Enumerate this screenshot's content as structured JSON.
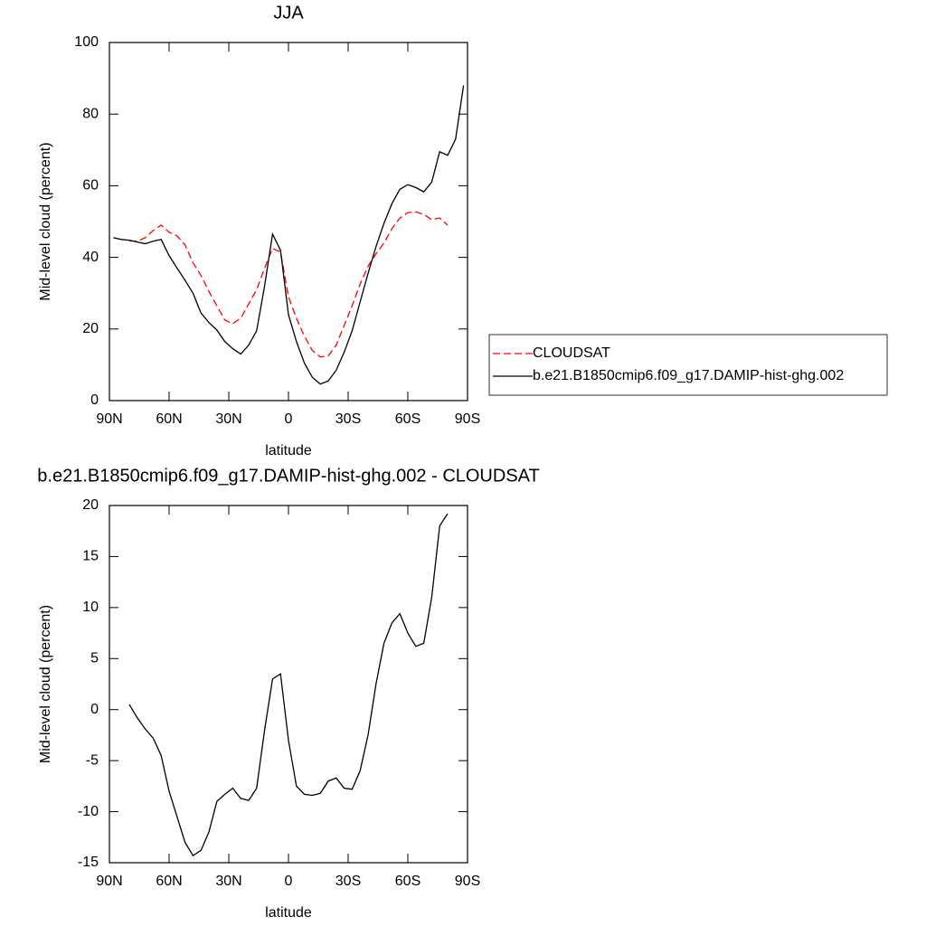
{
  "chart_data": [
    {
      "type": "line",
      "title": "JJA",
      "xlabel": "latitude",
      "ylabel": "Mid-level cloud (percent)",
      "x": [
        88,
        84,
        80,
        76,
        72,
        68,
        64,
        60,
        56,
        52,
        48,
        44,
        40,
        36,
        32,
        28,
        24,
        20,
        16,
        12,
        8,
        4,
        0,
        -4,
        -8,
        -12,
        -16,
        -20,
        -24,
        -28,
        -32,
        -36,
        -40,
        -44,
        -48,
        -52,
        -56,
        -60,
        -64,
        -68,
        -72,
        -76,
        -80,
        -84,
        -88
      ],
      "series": [
        {
          "name": "CLOUDSAT",
          "color": "#ff0000",
          "dashed": true,
          "values": [
            null,
            null,
            44.6,
            44.5,
            45.5,
            47.5,
            49.0,
            47.0,
            46.0,
            43.5,
            38.5,
            35.0,
            30.5,
            26.5,
            22.5,
            21.5,
            23.0,
            27.0,
            31.0,
            37.0,
            42.5,
            41.5,
            29.0,
            23.0,
            18.0,
            14.0,
            12.2,
            12.5,
            15.5,
            21.0,
            26.5,
            32.5,
            37.5,
            41.0,
            44.0,
            48.0,
            51.0,
            52.5,
            52.7,
            52.0,
            50.5,
            51.0,
            49.0,
            null,
            null
          ]
        },
        {
          "name": "b.e21.B1850cmip6.f09_g17.DAMIP-hist-ghg.002",
          "color": "#000000",
          "dashed": false,
          "values": [
            45.5,
            45.0,
            44.8,
            44.3,
            43.8,
            44.5,
            45.0,
            40.5,
            37.0,
            33.6,
            30.0,
            24.5,
            21.8,
            19.7,
            16.5,
            14.5,
            13.0,
            15.5,
            19.5,
            32.0,
            46.5,
            42.0,
            24.0,
            16.5,
            10.5,
            6.5,
            4.6,
            5.5,
            8.5,
            13.5,
            19.5,
            27.5,
            35.5,
            43.0,
            49.5,
            55.0,
            59.0,
            60.3,
            59.5,
            58.3,
            61.0,
            69.5,
            68.5,
            73.0,
            88.0
          ]
        }
      ],
      "xlim": [
        90,
        -90
      ],
      "xticks": [
        {
          "value": 90,
          "label": "90N"
        },
        {
          "value": 60,
          "label": "60N"
        },
        {
          "value": 30,
          "label": "30N"
        },
        0,
        {
          "value": -30,
          "label": "30S"
        },
        {
          "value": -60,
          "label": "60S"
        },
        {
          "value": -90,
          "label": "90S"
        }
      ],
      "ylim": [
        0,
        100
      ],
      "yticks": [
        0,
        20,
        40,
        60,
        80,
        100
      ],
      "legend": "right"
    },
    {
      "type": "line",
      "title": "b.e21.B1850cmip6.f09_g17.DAMIP-hist-ghg.002 - CLOUDSAT",
      "xlabel": "latitude",
      "ylabel": "Mid-level cloud (percent)",
      "x": [
        88,
        84,
        80,
        76,
        72,
        68,
        64,
        60,
        56,
        52,
        48,
        44,
        40,
        36,
        32,
        28,
        24,
        20,
        16,
        12,
        8,
        4,
        0,
        -4,
        -8,
        -12,
        -16,
        -20,
        -24,
        -28,
        -32,
        -36,
        -40,
        -44,
        -48,
        -52,
        -56,
        -60,
        -64,
        -68,
        -72,
        -76,
        -80,
        -84,
        -88
      ],
      "values": [
        null,
        null,
        0.5,
        -0.8,
        -1.9,
        -2.8,
        -4.5,
        -8.0,
        -10.5,
        -13.0,
        -14.3,
        -13.8,
        -12.0,
        -9.0,
        -8.3,
        -7.7,
        -8.7,
        -8.9,
        -7.7,
        -2.0,
        3.0,
        3.5,
        -3.0,
        -7.5,
        -8.3,
        -8.4,
        -8.2,
        -7.0,
        -6.7,
        -7.7,
        -7.8,
        -6.0,
        -2.5,
        2.5,
        6.5,
        8.5,
        9.4,
        7.5,
        6.2,
        6.5,
        11.0,
        18.0,
        19.2,
        null,
        null
      ],
      "color": "#000000",
      "xlim": [
        90,
        -90
      ],
      "xticks": [
        {
          "value": 90,
          "label": "90N"
        },
        {
          "value": 60,
          "label": "60N"
        },
        {
          "value": 30,
          "label": "30N"
        },
        0,
        {
          "value": -30,
          "label": "30S"
        },
        {
          "value": -60,
          "label": "60S"
        },
        {
          "value": -90,
          "label": "90S"
        }
      ],
      "ylim": [
        -15,
        20
      ],
      "yticks": [
        -15,
        -10,
        -5,
        0,
        5,
        10,
        15,
        20
      ]
    }
  ]
}
